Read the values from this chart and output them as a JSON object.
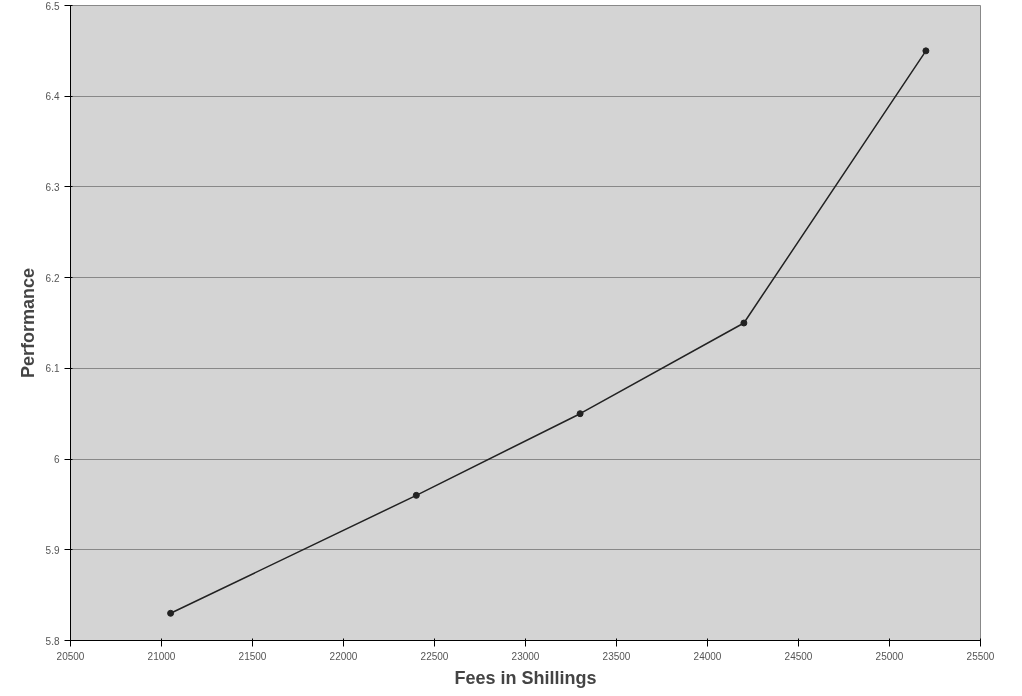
{
  "chart_data": {
    "type": "line",
    "xlabel": "Fees in Shillings",
    "ylabel": "Performance",
    "x": [
      21050,
      22400,
      23300,
      24200,
      25200
    ],
    "series": [
      {
        "color": "#222222",
        "values": [
          5.83,
          5.96,
          6.05,
          6.15,
          6.45
        ]
      }
    ],
    "xlim": [
      20500,
      25500
    ],
    "xticks": [
      20500,
      21000,
      21500,
      22000,
      22500,
      23000,
      23500,
      24000,
      24500,
      25000,
      25500
    ],
    "ylim": [
      5.8,
      6.5
    ],
    "yticks": [
      5.8,
      5.9,
      6,
      6.1,
      6.2,
      6.3,
      6.4,
      6.5
    ],
    "grid": "y",
    "marker": "circle",
    "line_style": "solid"
  }
}
